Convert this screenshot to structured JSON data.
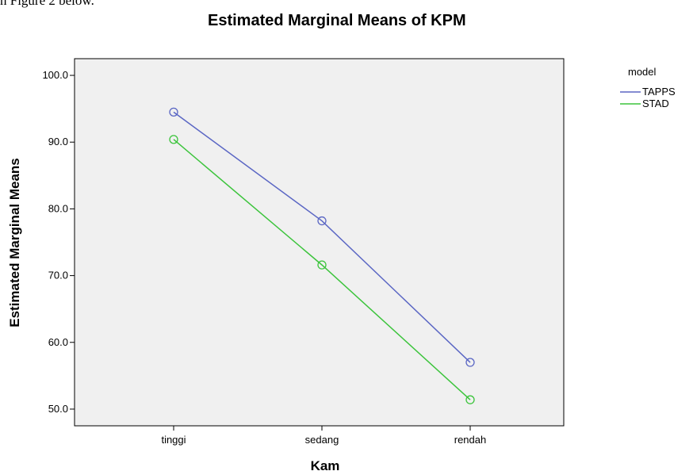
{
  "context_text": "n Figure 2 below.",
  "chart_data": {
    "type": "line",
    "title": "Estimated Marginal Means of KPM",
    "xlabel": "Kam",
    "ylabel": "Estimated Marginal Means",
    "categories": [
      "tinggi",
      "sedang",
      "rendah"
    ],
    "ylim": [
      47.5,
      102.5
    ],
    "yticks": [
      50.0,
      60.0,
      70.0,
      80.0,
      90.0,
      100.0
    ],
    "ytick_labels": [
      "50.0",
      "60.0",
      "70.0",
      "80.0",
      "90.0",
      "100.0"
    ],
    "grid": false,
    "legend": {
      "title": "model",
      "position": "right"
    },
    "series": [
      {
        "name": "TAPPS",
        "color": "#5b67c4",
        "values": [
          94.5,
          78.2,
          57.0
        ]
      },
      {
        "name": "STAD",
        "color": "#3cc43c",
        "values": [
          90.4,
          71.6,
          51.4
        ]
      }
    ]
  }
}
